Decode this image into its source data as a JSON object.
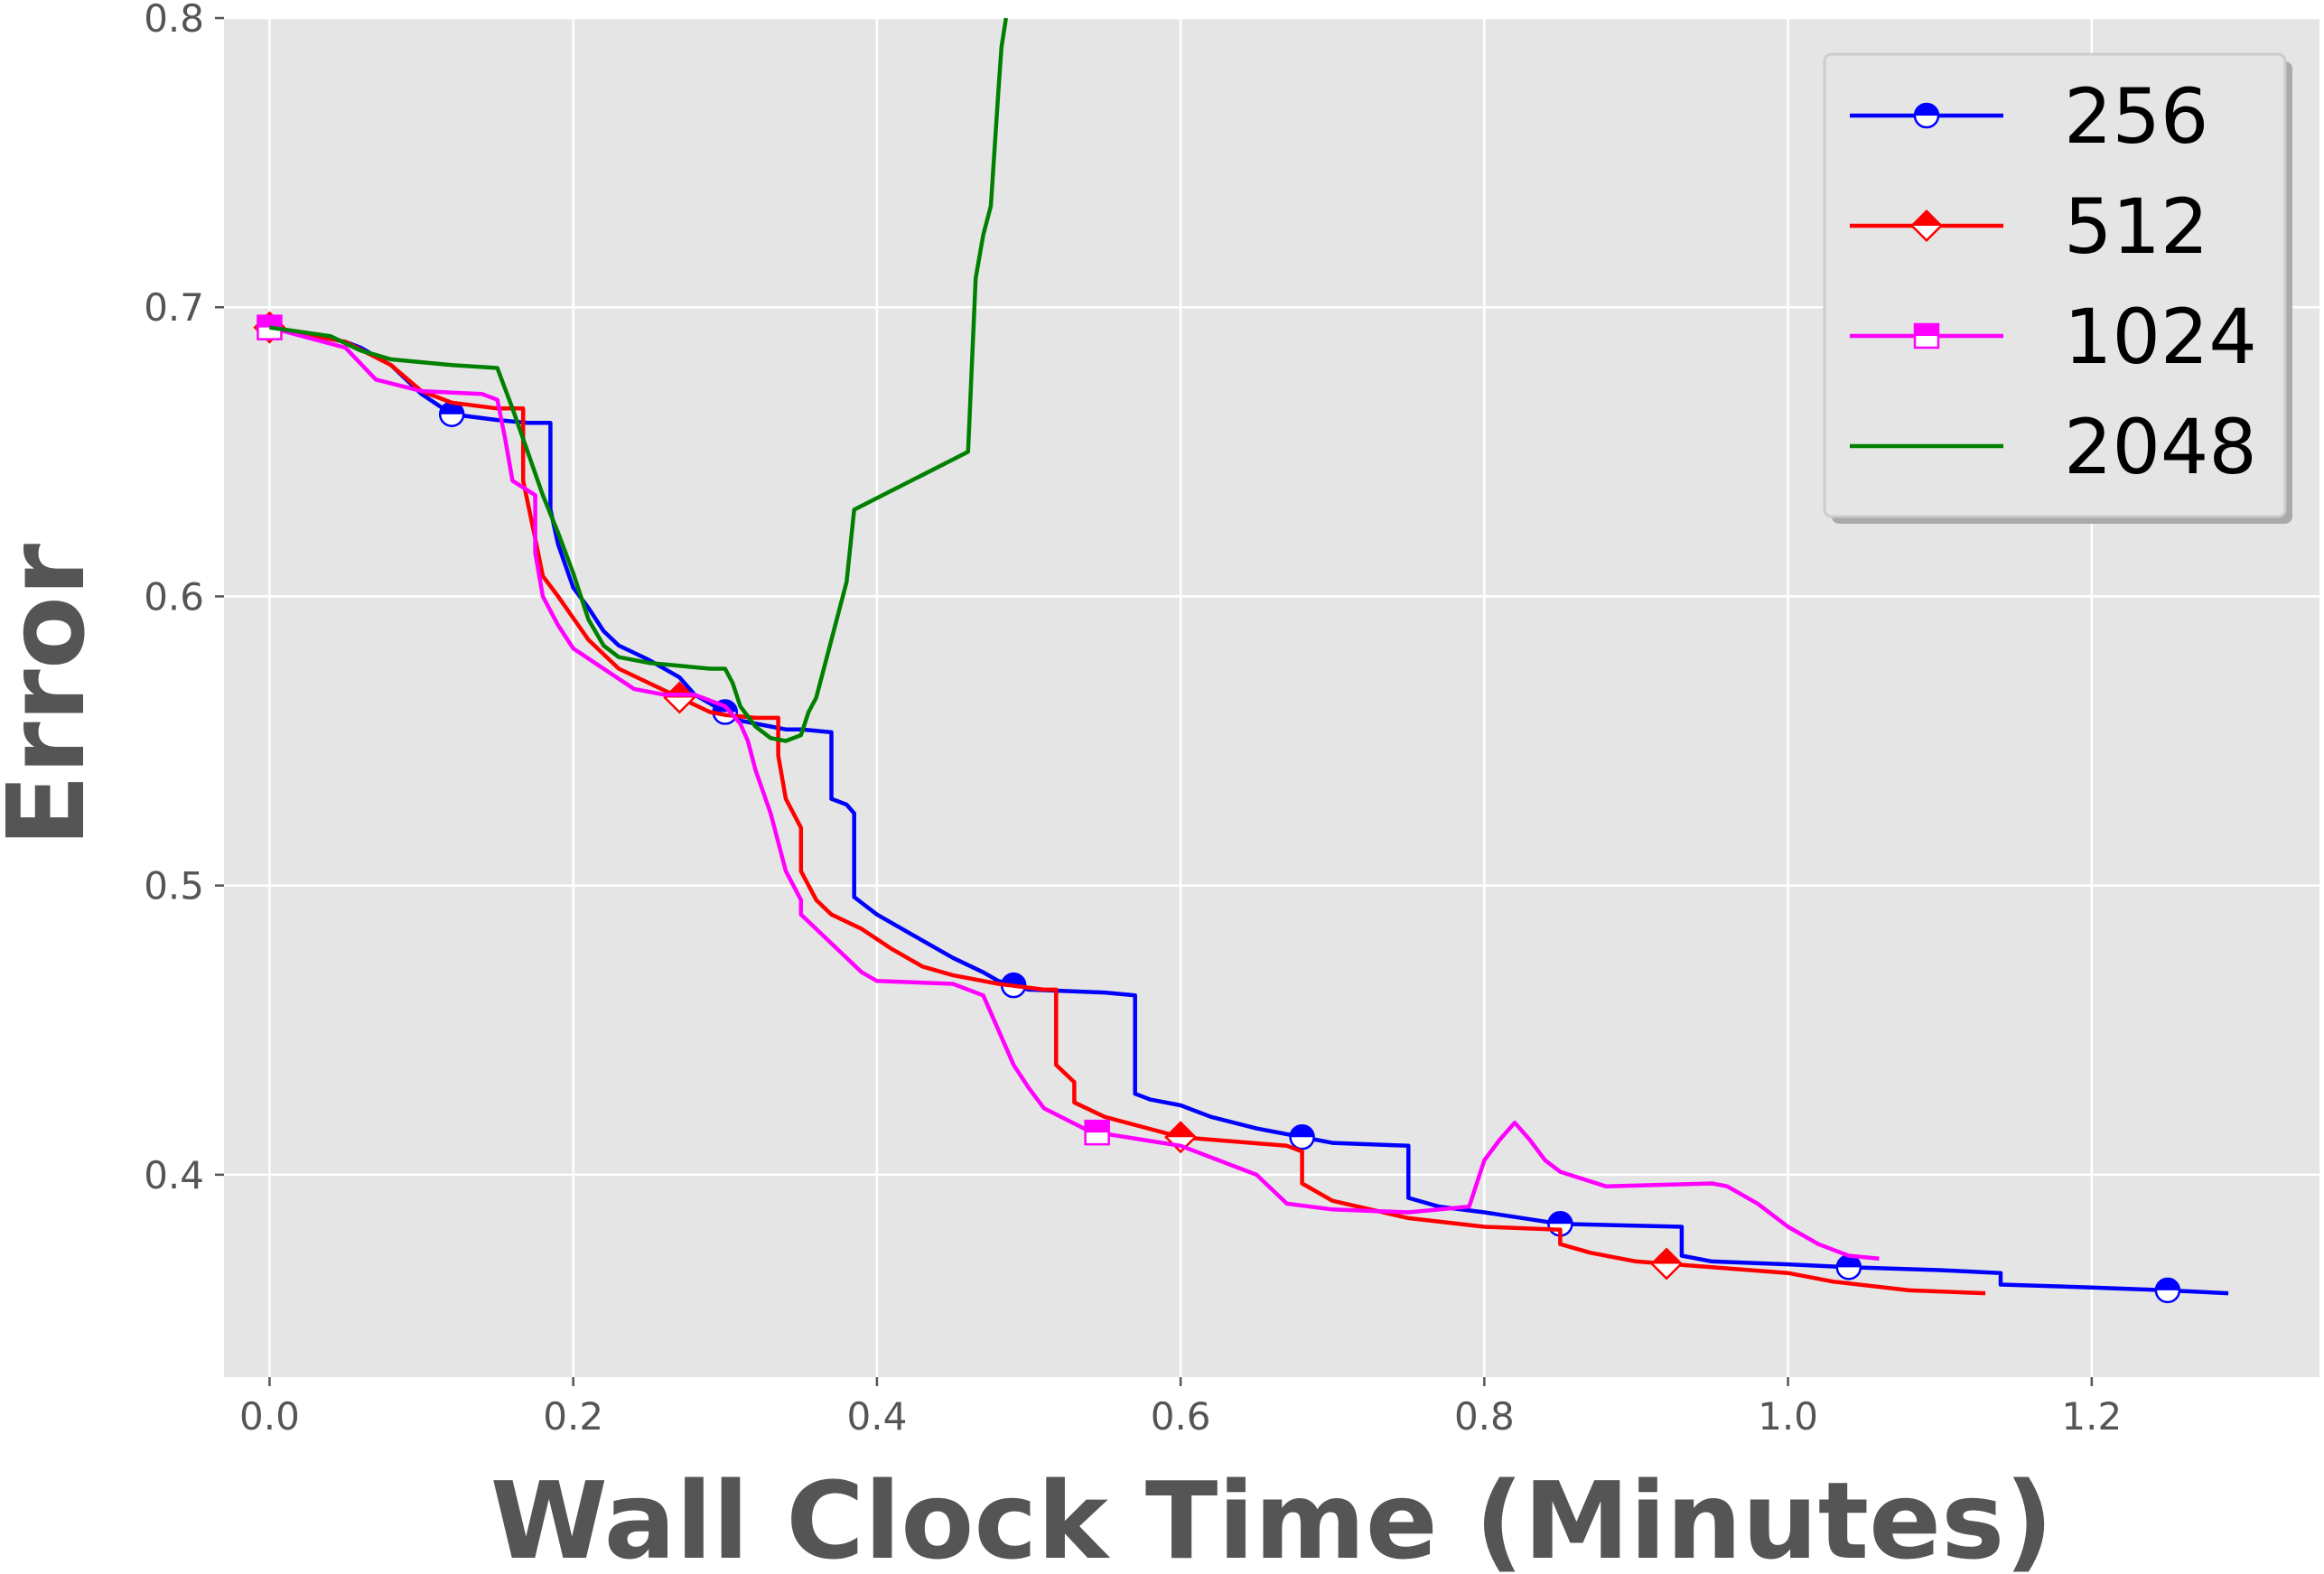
{
  "chart_data": {
    "type": "line",
    "title": "",
    "xlabel": "Wall Clock Time (Minutes)",
    "ylabel": "Error",
    "xlim": [
      -0.03,
      1.35
    ],
    "ylim": [
      0.33,
      0.8
    ],
    "x_ticks": [
      "0.0",
      "0.2",
      "0.4",
      "0.6",
      "0.8",
      "1.0",
      "1.2"
    ],
    "y_ticks": [
      "0.4",
      "0.5",
      "0.6",
      "0.7",
      "0.8"
    ],
    "grid": true,
    "legend_position": "top-right",
    "series": [
      {
        "name": "256",
        "color": "#0000ff",
        "marker": "circle",
        "marker_x": [
          0.0,
          0.12,
          0.3,
          0.49,
          0.68,
          0.85,
          1.04,
          1.25
        ],
        "x": [
          0.0,
          0.05,
          0.06,
          0.08,
          0.09,
          0.1,
          0.12,
          0.15,
          0.17,
          0.185,
          0.185,
          0.19,
          0.2,
          0.21,
          0.22,
          0.23,
          0.25,
          0.27,
          0.28,
          0.3,
          0.31,
          0.33,
          0.34,
          0.35,
          0.37,
          0.37,
          0.38,
          0.385,
          0.385,
          0.4,
          0.41,
          0.42,
          0.44,
          0.45,
          0.47,
          0.48,
          0.5,
          0.55,
          0.57,
          0.57,
          0.58,
          0.6,
          0.62,
          0.65,
          0.68,
          0.7,
          0.75,
          0.75,
          0.77,
          0.8,
          0.85,
          0.93,
          0.93,
          0.95,
          1.0,
          1.04,
          1.1,
          1.14,
          1.14,
          1.2,
          1.25,
          1.29
        ],
        "y": [
          0.693,
          0.688,
          0.686,
          0.68,
          0.675,
          0.67,
          0.663,
          0.661,
          0.66,
          0.66,
          0.63,
          0.618,
          0.603,
          0.596,
          0.588,
          0.583,
          0.578,
          0.572,
          0.566,
          0.56,
          0.557,
          0.555,
          0.554,
          0.554,
          0.553,
          0.53,
          0.528,
          0.525,
          0.496,
          0.49,
          0.487,
          0.484,
          0.478,
          0.475,
          0.47,
          0.467,
          0.464,
          0.463,
          0.462,
          0.428,
          0.426,
          0.424,
          0.42,
          0.416,
          0.413,
          0.411,
          0.41,
          0.392,
          0.389,
          0.387,
          0.383,
          0.382,
          0.372,
          0.37,
          0.369,
          0.368,
          0.367,
          0.366,
          0.362,
          0.361,
          0.36,
          0.359
        ]
      },
      {
        "name": "512",
        "color": "#ff0000",
        "marker": "diamond",
        "marker_x": [
          0.0,
          0.27,
          0.6,
          0.92
        ],
        "x": [
          0.0,
          0.05,
          0.08,
          0.1,
          0.12,
          0.15,
          0.167,
          0.167,
          0.175,
          0.18,
          0.19,
          0.21,
          0.23,
          0.25,
          0.27,
          0.29,
          0.3,
          0.32,
          0.335,
          0.335,
          0.34,
          0.35,
          0.35,
          0.36,
          0.37,
          0.39,
          0.41,
          0.43,
          0.45,
          0.48,
          0.51,
          0.518,
          0.518,
          0.53,
          0.53,
          0.55,
          0.6,
          0.67,
          0.68,
          0.68,
          0.7,
          0.75,
          0.8,
          0.85,
          0.85,
          0.87,
          0.9,
          0.95,
          1.0,
          1.03,
          1.08,
          1.13
        ],
        "y": [
          0.693,
          0.688,
          0.68,
          0.671,
          0.667,
          0.665,
          0.665,
          0.64,
          0.62,
          0.607,
          0.6,
          0.585,
          0.575,
          0.57,
          0.565,
          0.56,
          0.559,
          0.558,
          0.558,
          0.545,
          0.53,
          0.52,
          0.505,
          0.495,
          0.49,
          0.485,
          0.478,
          0.472,
          0.469,
          0.466,
          0.464,
          0.464,
          0.438,
          0.432,
          0.425,
          0.42,
          0.413,
          0.41,
          0.408,
          0.397,
          0.391,
          0.385,
          0.382,
          0.381,
          0.376,
          0.373,
          0.37,
          0.368,
          0.366,
          0.363,
          0.36,
          0.359
        ]
      },
      {
        "name": "1024",
        "color": "#ff00ff",
        "marker": "square",
        "marker_x": [
          0.0,
          0.545
        ],
        "x": [
          0.0,
          0.05,
          0.07,
          0.1,
          0.14,
          0.15,
          0.155,
          0.16,
          0.175,
          0.175,
          0.18,
          0.19,
          0.2,
          0.22,
          0.24,
          0.26,
          0.28,
          0.3,
          0.31,
          0.315,
          0.32,
          0.33,
          0.335,
          0.34,
          0.345,
          0.35,
          0.35,
          0.37,
          0.39,
          0.4,
          0.45,
          0.47,
          0.48,
          0.49,
          0.5,
          0.51,
          0.54,
          0.6,
          0.65,
          0.67,
          0.7,
          0.75,
          0.79,
          0.8,
          0.81,
          0.82,
          0.83,
          0.84,
          0.85,
          0.88,
          0.95,
          0.96,
          0.98,
          1.0,
          1.02,
          1.04,
          1.06
        ],
        "y": [
          0.693,
          0.686,
          0.675,
          0.671,
          0.67,
          0.668,
          0.655,
          0.64,
          0.635,
          0.615,
          0.6,
          0.59,
          0.582,
          0.575,
          0.568,
          0.566,
          0.566,
          0.562,
          0.556,
          0.55,
          0.54,
          0.525,
          0.515,
          0.505,
          0.5,
          0.495,
          0.49,
          0.48,
          0.47,
          0.467,
          0.466,
          0.462,
          0.45,
          0.438,
          0.43,
          0.423,
          0.415,
          0.41,
          0.4,
          0.39,
          0.388,
          0.387,
          0.389,
          0.405,
          0.412,
          0.418,
          0.412,
          0.405,
          0.401,
          0.396,
          0.397,
          0.396,
          0.39,
          0.382,
          0.376,
          0.372,
          0.371
        ]
      },
      {
        "name": "2048",
        "color": "#008000",
        "marker": "none",
        "marker_x": [],
        "x": [
          0.0,
          0.04,
          0.06,
          0.08,
          0.1,
          0.12,
          0.15,
          0.16,
          0.17,
          0.18,
          0.19,
          0.2,
          0.21,
          0.22,
          0.23,
          0.25,
          0.27,
          0.29,
          0.3,
          0.305,
          0.31,
          0.32,
          0.33,
          0.34,
          0.35,
          0.355,
          0.36,
          0.365,
          0.37,
          0.375,
          0.38,
          0.385,
          0.46,
          0.465,
          0.47,
          0.475,
          0.48,
          0.482,
          0.485
        ],
        "y": [
          0.693,
          0.69,
          0.685,
          0.682,
          0.681,
          0.68,
          0.679,
          0.665,
          0.65,
          0.635,
          0.622,
          0.608,
          0.592,
          0.583,
          0.579,
          0.577,
          0.576,
          0.575,
          0.575,
          0.57,
          0.562,
          0.555,
          0.551,
          0.55,
          0.552,
          0.56,
          0.565,
          0.575,
          0.585,
          0.595,
          0.605,
          0.63,
          0.65,
          0.71,
          0.725,
          0.735,
          0.775,
          0.79,
          0.8
        ]
      }
    ]
  }
}
